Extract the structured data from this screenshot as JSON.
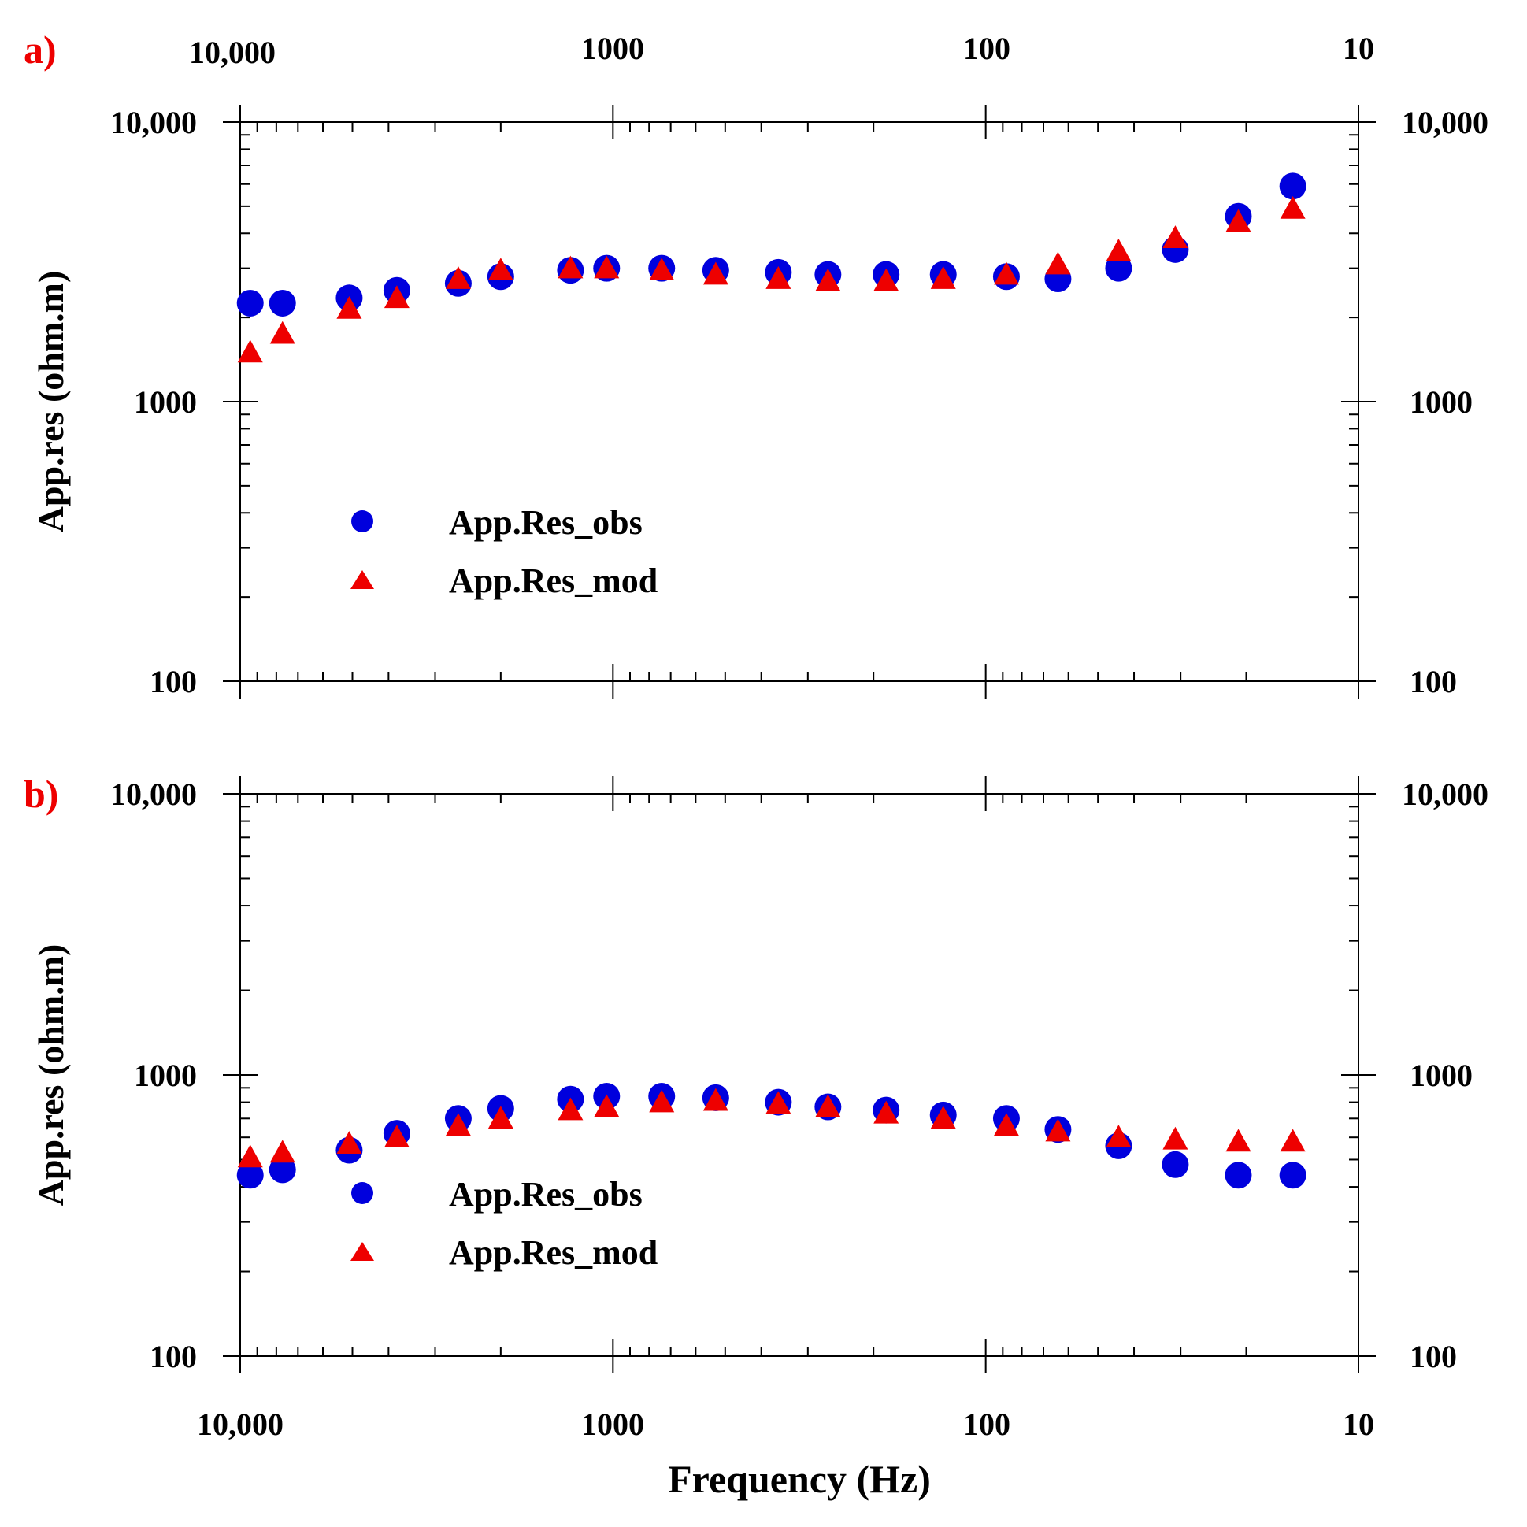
{
  "chart_data": [
    {
      "type": "scatter",
      "panel_label": "a)",
      "ylabel": "App.res (ohm.m)",
      "xscale": "log",
      "yscale": "log",
      "x_reversed": true,
      "xlim": [
        10000,
        10
      ],
      "ylim": [
        100,
        10000
      ],
      "x_tick_labels_top": [
        "10,000",
        "1000",
        "100",
        "10"
      ],
      "y_tick_labels": [
        "10,000",
        "1000",
        "100"
      ],
      "legend": [
        "App.Res_obs",
        "App.Res_mod"
      ],
      "legend_position": "lower-left",
      "x": [
        9400,
        7700,
        5100,
        3800,
        2600,
        2000,
        1300,
        1040,
        740,
        530,
        360,
        265,
        185,
        130,
        88,
        64,
        44,
        31,
        21,
        15
      ],
      "series": [
        {
          "name": "App.Res_obs",
          "marker": "circle",
          "color": "#0000dd",
          "values": [
            2250,
            2250,
            2350,
            2500,
            2650,
            2800,
            2950,
            3000,
            3000,
            2950,
            2900,
            2850,
            2850,
            2850,
            2800,
            2750,
            3000,
            3500,
            4600,
            5900
          ]
        },
        {
          "name": "App.Res_mod",
          "marker": "triangle",
          "color": "#ee0000",
          "values": [
            1500,
            1750,
            2150,
            2350,
            2750,
            2950,
            3000,
            3000,
            2950,
            2850,
            2750,
            2700,
            2700,
            2750,
            2850,
            3100,
            3450,
            3850,
            4400,
            4900
          ]
        }
      ]
    },
    {
      "type": "scatter",
      "panel_label": "b)",
      "ylabel": "App.res (ohm.m)",
      "xlabel": "Frequency (Hz)",
      "xscale": "log",
      "yscale": "log",
      "x_reversed": true,
      "xlim": [
        10000,
        10
      ],
      "ylim": [
        100,
        10000
      ],
      "x_tick_labels_bottom": [
        "10,000",
        "1000",
        "100",
        "10"
      ],
      "y_tick_labels": [
        "10,000",
        "1000",
        "100"
      ],
      "legend": [
        "App.Res_obs",
        "App.Res_mod"
      ],
      "legend_position": "lower-left",
      "x": [
        9400,
        7700,
        5100,
        3800,
        2600,
        2000,
        1300,
        1040,
        740,
        530,
        360,
        265,
        185,
        130,
        88,
        64,
        44,
        31,
        21,
        15
      ],
      "series": [
        {
          "name": "App.Res_obs",
          "marker": "circle",
          "color": "#0000dd",
          "values": [
            440,
            460,
            540,
            620,
            700,
            760,
            820,
            840,
            840,
            830,
            800,
            770,
            750,
            720,
            700,
            640,
            560,
            480,
            440,
            440
          ]
        },
        {
          "name": "App.Res_mod",
          "marker": "triangle",
          "color": "#ee0000",
          "values": [
            510,
            530,
            570,
            600,
            660,
            700,
            750,
            770,
            800,
            810,
            790,
            770,
            730,
            700,
            660,
            630,
            600,
            590,
            580,
            580
          ]
        }
      ]
    }
  ],
  "colors": {
    "panel_label": "#ee0000",
    "obs": "#0000dd",
    "mod": "#ee0000",
    "axis": "#000000"
  }
}
